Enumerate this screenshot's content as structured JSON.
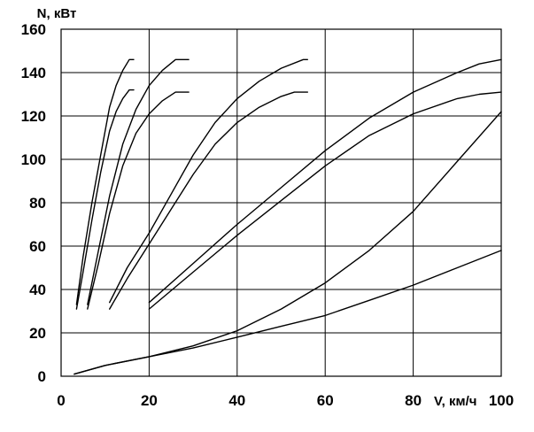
{
  "chart_data": {
    "type": "line",
    "title": "",
    "xlabel": "V, км/ч",
    "ylabel": "N, кВт",
    "xlim": [
      0,
      100
    ],
    "ylim": [
      0,
      160
    ],
    "x_ticks": [
      0,
      20,
      40,
      60,
      80,
      100
    ],
    "y_ticks": [
      0,
      20,
      40,
      60,
      80,
      100,
      120,
      140,
      160
    ],
    "grid": true,
    "legend": "none",
    "line_color": "#000000",
    "series": [
      {
        "points": [
          [
            3.5,
            33
          ],
          [
            5,
            55
          ],
          [
            7,
            80
          ],
          [
            9,
            102
          ],
          [
            11,
            124
          ],
          [
            12.5,
            134
          ],
          [
            14,
            141
          ],
          [
            15.5,
            146
          ],
          [
            16.5,
            146
          ]
        ]
      },
      {
        "points": [
          [
            3.5,
            31
          ],
          [
            5,
            48
          ],
          [
            7,
            72
          ],
          [
            9,
            94
          ],
          [
            11,
            113
          ],
          [
            12.5,
            122
          ],
          [
            14,
            128
          ],
          [
            15.5,
            132
          ],
          [
            16.5,
            132
          ]
        ]
      },
      {
        "points": [
          [
            6,
            33
          ],
          [
            8.5,
            58
          ],
          [
            11,
            83
          ],
          [
            14,
            107
          ],
          [
            17,
            123
          ],
          [
            20,
            134
          ],
          [
            23,
            141
          ],
          [
            26,
            146
          ],
          [
            29,
            146
          ]
        ]
      },
      {
        "points": [
          [
            6,
            31
          ],
          [
            8.5,
            52
          ],
          [
            11,
            75
          ],
          [
            14,
            97
          ],
          [
            17,
            112
          ],
          [
            20,
            121
          ],
          [
            23,
            127
          ],
          [
            26,
            131
          ],
          [
            29,
            131
          ]
        ]
      },
      {
        "points": [
          [
            11,
            34
          ],
          [
            15,
            50
          ],
          [
            20,
            66
          ],
          [
            25,
            84
          ],
          [
            30,
            102
          ],
          [
            35,
            117
          ],
          [
            40,
            128
          ],
          [
            45,
            136
          ],
          [
            50,
            142
          ],
          [
            55,
            146
          ],
          [
            56,
            146
          ]
        ]
      },
      {
        "points": [
          [
            11,
            31
          ],
          [
            15,
            45
          ],
          [
            20,
            61
          ],
          [
            25,
            77
          ],
          [
            30,
            93
          ],
          [
            35,
            107
          ],
          [
            40,
            117
          ],
          [
            45,
            124
          ],
          [
            50,
            129
          ],
          [
            53,
            131
          ],
          [
            56,
            131
          ]
        ]
      },
      {
        "points": [
          [
            20,
            34
          ],
          [
            30,
            52
          ],
          [
            40,
            70
          ],
          [
            50,
            87
          ],
          [
            60,
            104
          ],
          [
            70,
            119
          ],
          [
            80,
            131
          ],
          [
            90,
            140
          ],
          [
            95,
            144
          ],
          [
            100,
            146
          ]
        ]
      },
      {
        "points": [
          [
            20,
            31
          ],
          [
            30,
            48
          ],
          [
            40,
            65
          ],
          [
            50,
            81
          ],
          [
            60,
            97
          ],
          [
            70,
            111
          ],
          [
            80,
            121
          ],
          [
            90,
            128
          ],
          [
            95,
            130
          ],
          [
            100,
            131
          ]
        ]
      },
      {
        "points": [
          [
            3,
            1
          ],
          [
            10,
            5
          ],
          [
            20,
            9
          ],
          [
            30,
            14
          ],
          [
            40,
            21
          ],
          [
            50,
            31
          ],
          [
            60,
            43
          ],
          [
            70,
            58
          ],
          [
            80,
            76
          ],
          [
            90,
            99
          ],
          [
            100,
            122
          ]
        ]
      },
      {
        "points": [
          [
            3,
            1
          ],
          [
            10,
            5
          ],
          [
            20,
            9
          ],
          [
            30,
            13
          ],
          [
            40,
            18
          ],
          [
            50,
            23
          ],
          [
            60,
            28
          ],
          [
            70,
            35
          ],
          [
            80,
            42
          ],
          [
            90,
            50
          ],
          [
            100,
            58
          ]
        ]
      }
    ]
  }
}
